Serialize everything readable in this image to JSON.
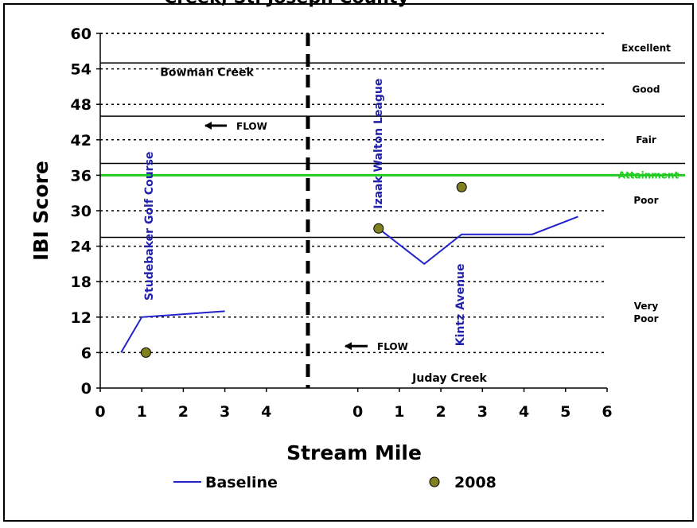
{
  "chart_data": {
    "type": "line",
    "title": "Creek, St. Joseph County",
    "xlabel": "Stream Mile",
    "ylabel": "IBI Score",
    "ylim": [
      0,
      60
    ],
    "yticks": [
      0,
      6,
      12,
      18,
      24,
      30,
      36,
      42,
      48,
      54,
      60
    ],
    "left_panel": {
      "name": "Bowman Creek",
      "xlim": [
        0,
        5
      ],
      "xticks": [
        0,
        1,
        2,
        3,
        4
      ],
      "flow_label": "FLOW",
      "sites": [
        {
          "label": "Studebaker Golf Course",
          "x": 1.1
        }
      ],
      "series": [
        {
          "name": "Baseline",
          "type": "line",
          "points": [
            [
              0.5,
              6
            ],
            [
              1.0,
              12
            ],
            [
              3.0,
              13
            ]
          ]
        },
        {
          "name": "2008",
          "type": "scatter",
          "points": [
            [
              1.1,
              6
            ]
          ]
        }
      ]
    },
    "right_panel": {
      "name": "Juday Creek",
      "xlim": [
        -1.2,
        6
      ],
      "xticks": [
        0,
        1,
        2,
        3,
        4,
        5,
        6
      ],
      "flow_label": "FLOW",
      "sites": [
        {
          "label": "Izaak Walton League",
          "x": 0.5
        },
        {
          "label": "Kintz Avenue",
          "x": 2.5
        }
      ],
      "series": [
        {
          "name": "Baseline",
          "type": "line",
          "points": [
            [
              0.5,
              27
            ],
            [
              1.6,
              21
            ],
            [
              2.5,
              26
            ],
            [
              4.2,
              26
            ],
            [
              5.3,
              29
            ]
          ]
        },
        {
          "name": "2008",
          "type": "scatter",
          "points": [
            [
              0.5,
              27
            ],
            [
              2.5,
              34
            ]
          ]
        }
      ]
    },
    "bands": [
      {
        "label": "Excellent",
        "from": 55,
        "to": 60
      },
      {
        "label": "Good",
        "from": 46,
        "to": 55
      },
      {
        "label": "Fair",
        "from": 38,
        "to": 46
      },
      {
        "label": "Poor",
        "from": 25.5,
        "to": 38
      },
      {
        "label": "Very Poor",
        "from": 0,
        "to": 25.5
      }
    ],
    "attainment": {
      "label": "Attainment",
      "value": 36,
      "color": "#22cc22"
    },
    "legend": [
      {
        "name": "Baseline",
        "marker": "line",
        "color": "#2222cc"
      },
      {
        "name": "2008",
        "marker": "circle",
        "color": "#808020"
      }
    ],
    "legend_position": "bottom",
    "grid": true,
    "colors": {
      "line": "#2222cc",
      "point_fill": "#808020",
      "attainment": "#22cc22",
      "site_label": "#2222aa"
    }
  }
}
